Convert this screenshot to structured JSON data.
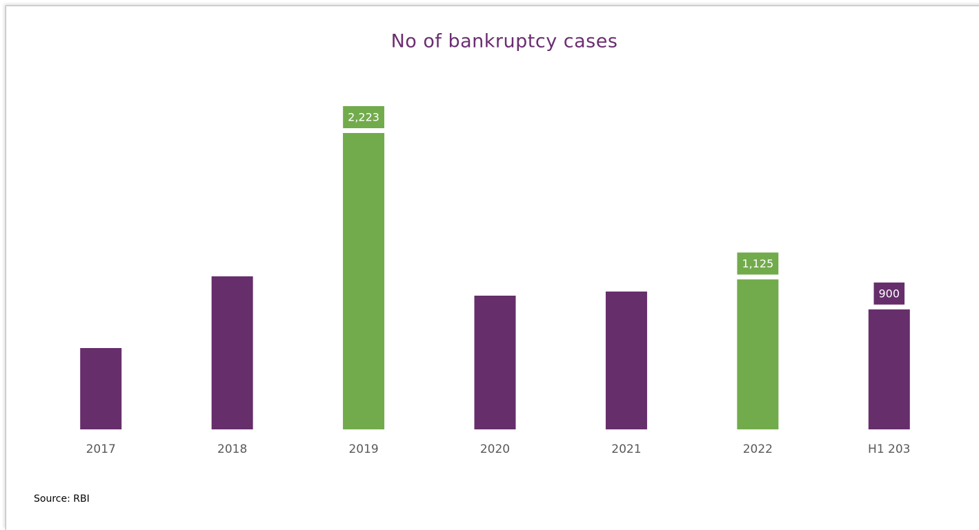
{
  "chart_data": {
    "type": "bar",
    "title": "No of bankruptcy cases",
    "categories": [
      "2017",
      "2018",
      "2019",
      "2020",
      "2021",
      "2022",
      "H1 203"
    ],
    "values": [
      610,
      1148,
      2223,
      1003,
      1034,
      1125,
      900
    ],
    "value_labels": [
      null,
      null,
      "2,223",
      null,
      null,
      "1,125",
      "900"
    ],
    "colors": [
      "#662e6b",
      "#662e6b",
      "#72ab4b",
      "#662e6b",
      "#662e6b",
      "#72ab4b",
      "#662e6b"
    ],
    "source": "Source: RBI"
  }
}
